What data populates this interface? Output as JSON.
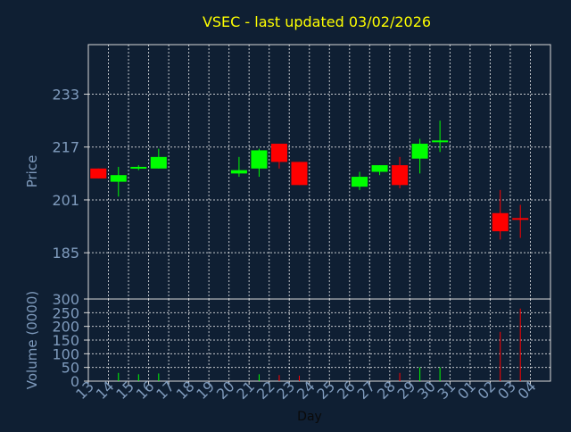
{
  "chart_data": {
    "type": "candlestick",
    "title": "VSEC - last updated 03/02/2026",
    "xlabel": "Day",
    "grid": true,
    "colors": {
      "background": "#0f1f33",
      "axis": "#d9d9d9",
      "grid": "#ffffff",
      "tick_text": "#7f9bbd",
      "title": "#ffff00",
      "up": "#00ff00",
      "down": "#ff0000"
    },
    "x_ticks": [
      "13",
      "14",
      "15",
      "16",
      "17",
      "18",
      "19",
      "20",
      "21",
      "22",
      "23",
      "24",
      "25",
      "26",
      "27",
      "28",
      "29",
      "30",
      "31",
      "01",
      "02",
      "03",
      "04"
    ],
    "price": {
      "ylabel": "Price",
      "ylim": [
        171,
        248
      ],
      "yticks": [
        185,
        201,
        217,
        233
      ],
      "candles": [
        {
          "x": 13,
          "open": 210.5,
          "high": 210.5,
          "low": 207.5,
          "close": 207.5
        },
        {
          "x": 14,
          "open": 206.5,
          "high": 211.0,
          "low": 202.0,
          "close": 208.5
        },
        {
          "x": 15,
          "open": 210.5,
          "high": 211.5,
          "low": 210.0,
          "close": 211.0
        },
        {
          "x": 16,
          "open": 210.5,
          "high": 216.5,
          "low": 210.5,
          "close": 214.0
        },
        {
          "x": 20,
          "open": 209.0,
          "high": 214.0,
          "low": 208.0,
          "close": 210.0
        },
        {
          "x": 21,
          "open": 210.5,
          "high": 216.5,
          "low": 208.0,
          "close": 216.0
        },
        {
          "x": 22,
          "open": 218.0,
          "high": 218.0,
          "low": 210.5,
          "close": 212.5
        },
        {
          "x": 23,
          "open": 212.5,
          "high": 212.5,
          "low": 205.5,
          "close": 205.5
        },
        {
          "x": 26,
          "open": 205.0,
          "high": 209.5,
          "low": 204.0,
          "close": 208.0
        },
        {
          "x": 27,
          "open": 209.5,
          "high": 211.5,
          "low": 208.5,
          "close": 211.5
        },
        {
          "x": 28,
          "open": 211.5,
          "high": 214.0,
          "low": 204.5,
          "close": 205.5
        },
        {
          "x": 29,
          "open": 213.5,
          "high": 219.5,
          "low": 209.0,
          "close": 218.0
        },
        {
          "x": 30,
          "open": 218.5,
          "high": 225.0,
          "low": 215.5,
          "close": 219.0
        },
        {
          "x": "02",
          "open": 197.0,
          "high": 204.0,
          "low": 189.0,
          "close": 191.5
        },
        {
          "x": "03",
          "open": 195.5,
          "high": 199.5,
          "low": 189.5,
          "close": 195.0
        }
      ]
    },
    "volume": {
      "ylabel": "Volume (0000)",
      "ylim": [
        0,
        300
      ],
      "yticks": [
        0,
        50,
        100,
        150,
        200,
        250,
        300
      ],
      "bars": [
        {
          "x": 14,
          "value": 30,
          "dir": "up"
        },
        {
          "x": 15,
          "value": 25,
          "dir": "up"
        },
        {
          "x": 16,
          "value": 28,
          "dir": "up"
        },
        {
          "x": 21,
          "value": 25,
          "dir": "up"
        },
        {
          "x": 22,
          "value": 22,
          "dir": "down"
        },
        {
          "x": 23,
          "value": 20,
          "dir": "down"
        },
        {
          "x": 28,
          "value": 30,
          "dir": "down"
        },
        {
          "x": 29,
          "value": 50,
          "dir": "up"
        },
        {
          "x": 30,
          "value": 50,
          "dir": "up"
        },
        {
          "x": "02",
          "value": 180,
          "dir": "down"
        },
        {
          "x": "03",
          "value": 265,
          "dir": "down"
        }
      ]
    }
  }
}
